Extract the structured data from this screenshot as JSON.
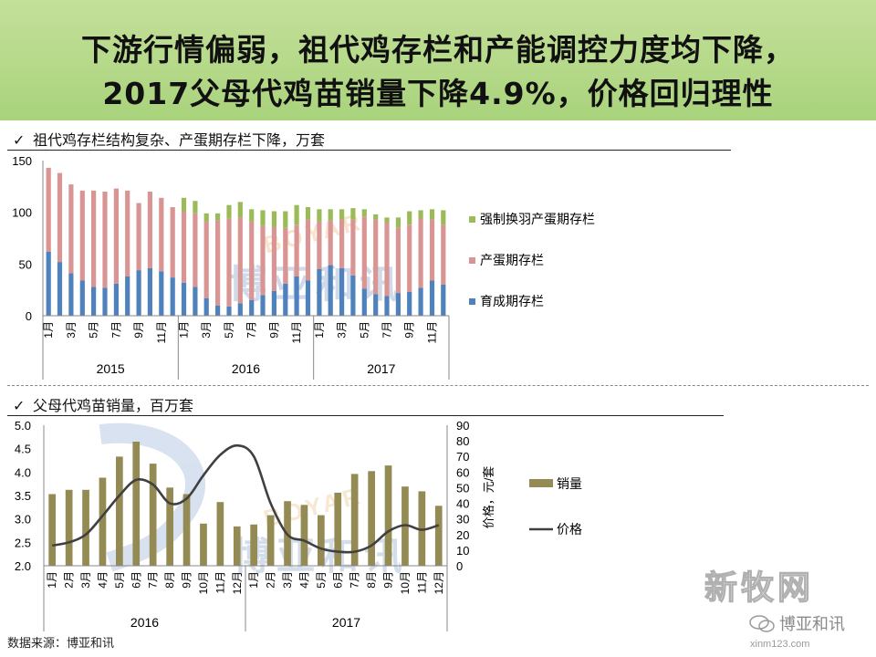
{
  "title": {
    "line1": "下游行情偏弱，祖代鸡存栏和产能调控力度均下降，",
    "line2": "2017父母代鸡苗销量下降4.9%，价格回归理性"
  },
  "source": "数据来源：博亚和讯",
  "watermark": {
    "boyar": "BOYAR",
    "bigtext": "博亚和讯",
    "brand": "新牧网",
    "wechat": "博亚和讯",
    "url": "xinm123.com"
  },
  "chart_data": [
    {
      "type": "bar",
      "stacked": true,
      "title": "祖代鸡存栏结构复杂、产蛋期存栏下降，万套",
      "ylim": [
        0,
        150
      ],
      "yticks": [
        "0",
        "50",
        "100",
        "150"
      ],
      "month_labels": [
        "1月",
        "",
        "3月",
        "",
        "5月",
        "",
        "7月",
        "",
        "9月",
        "",
        "11月",
        ""
      ],
      "years": [
        "2015",
        "2016",
        "2017"
      ],
      "legend_position": "right",
      "series": [
        {
          "name": "育成期存栏",
          "color": "#4f81bd",
          "values": [
            62,
            52,
            41,
            34,
            28,
            27,
            31,
            38,
            44,
            46,
            43,
            37,
            32,
            28,
            17,
            10,
            9,
            12,
            15,
            20,
            24,
            31,
            38,
            34,
            45,
            49,
            46,
            39,
            26,
            21,
            19,
            22,
            23,
            27,
            34,
            30
          ]
        },
        {
          "name": "产蛋期存栏",
          "color": "#d99594",
          "values": [
            81,
            86,
            86,
            87,
            93,
            93,
            92,
            83,
            65,
            74,
            71,
            68,
            69,
            71,
            74,
            82,
            85,
            83,
            76,
            67,
            62,
            54,
            50,
            59,
            46,
            43,
            47,
            54,
            70,
            72,
            71,
            63,
            65,
            67,
            59,
            58
          ]
        },
        {
          "name": "强制换羽产蛋期存栏",
          "color": "#9bbb59",
          "values": [
            0,
            0,
            0,
            0,
            0,
            0,
            0,
            0,
            0,
            0,
            0,
            0,
            13,
            12,
            8,
            7,
            13,
            15,
            12,
            15,
            15,
            16,
            19,
            12,
            12,
            11,
            10,
            11,
            7,
            5,
            5,
            10,
            13,
            8,
            10,
            14
          ]
        }
      ]
    },
    {
      "type": "bar+line",
      "title": "父母代鸡苗销量，百万套",
      "x_labels": [
        "1月",
        "2月",
        "3月",
        "4月",
        "5月",
        "6月",
        "7月",
        "8月",
        "9月",
        "10月",
        "11月",
        "12月"
      ],
      "years": [
        "2016",
        "2017"
      ],
      "ylim_left": [
        2.0,
        5.0
      ],
      "yticks_left": [
        "2.0",
        "2.5",
        "3.0",
        "3.5",
        "4.0",
        "4.5",
        "5.0"
      ],
      "ylim_right": [
        0,
        90
      ],
      "yticks_right": [
        "0",
        "10",
        "20",
        "30",
        "40",
        "50",
        "60",
        "70",
        "80",
        "90"
      ],
      "ylabel_right": "价格，元/套",
      "legend_position": "right",
      "series": [
        {
          "name": "销量",
          "type": "bar",
          "color": "#948a54",
          "values": [
            3.53,
            3.62,
            3.62,
            3.88,
            4.33,
            4.65,
            4.18,
            3.67,
            3.53,
            2.9,
            3.36,
            2.84,
            2.88,
            3.08,
            3.38,
            3.3,
            3.08,
            3.56,
            3.96,
            4.02,
            4.14,
            3.69,
            3.59,
            3.28
          ]
        },
        {
          "name": "价格",
          "type": "line",
          "color": "#404040",
          "values": [
            13,
            15,
            20,
            32,
            45,
            55,
            52,
            40,
            43,
            58,
            71,
            77,
            70,
            40,
            20,
            16,
            11,
            9,
            9,
            13,
            22,
            26,
            23,
            26
          ]
        }
      ]
    }
  ]
}
